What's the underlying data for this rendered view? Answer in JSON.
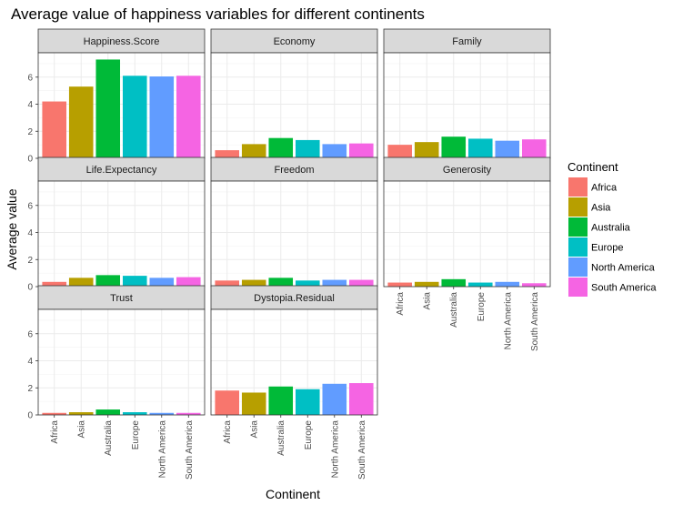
{
  "chart_data": {
    "type": "bar",
    "title": "Average value of happiness variables for different continents",
    "xlabel": "Continent",
    "ylabel": "Average value",
    "ylim": [
      0,
      7.8
    ],
    "y_ticks": [
      0,
      2,
      4,
      6
    ],
    "y_tick_labels": [
      "0",
      "2",
      "4",
      "6"
    ],
    "grid": true,
    "legend_position": "right",
    "legend_title": "Continent",
    "categories": [
      "Africa",
      "Asia",
      "Australia",
      "Europe",
      "North America",
      "South America"
    ],
    "colors": [
      "#F8766D",
      "#B79F00",
      "#00BA38",
      "#00BFC4",
      "#619CFF",
      "#F564E3"
    ],
    "facets": [
      {
        "name": "Happiness.Score",
        "values": [
          4.2,
          5.3,
          7.3,
          6.1,
          6.05,
          6.1
        ]
      },
      {
        "name": "Economy",
        "values": [
          0.6,
          1.05,
          1.5,
          1.35,
          1.05,
          1.1
        ]
      },
      {
        "name": "Family",
        "values": [
          1.0,
          1.2,
          1.6,
          1.45,
          1.3,
          1.4
        ]
      },
      {
        "name": "Life.Expectancy",
        "values": [
          0.35,
          0.65,
          0.85,
          0.8,
          0.65,
          0.7
        ]
      },
      {
        "name": "Freedom",
        "values": [
          0.45,
          0.5,
          0.65,
          0.45,
          0.5,
          0.5
        ]
      },
      {
        "name": "Generosity",
        "values": [
          0.3,
          0.35,
          0.55,
          0.3,
          0.35,
          0.25
        ]
      },
      {
        "name": "Trust",
        "values": [
          0.15,
          0.2,
          0.4,
          0.2,
          0.15,
          0.15
        ]
      },
      {
        "name": "Dystopia.Residual",
        "values": [
          1.8,
          1.65,
          2.1,
          1.9,
          2.3,
          2.35
        ]
      }
    ]
  }
}
